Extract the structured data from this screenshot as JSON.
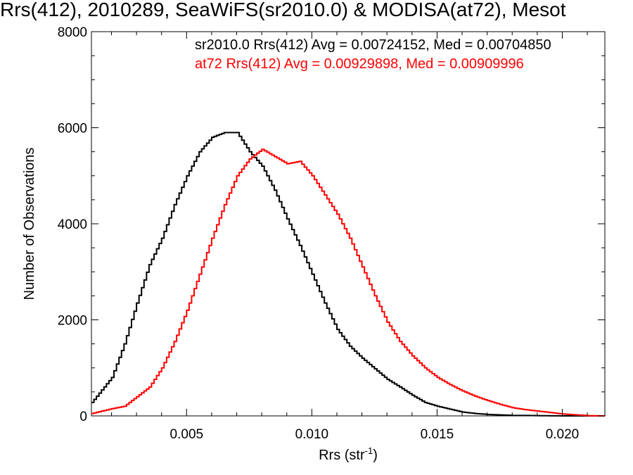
{
  "chart_data": {
    "type": "line",
    "step": true,
    "title": "Rrs(412), 2010289, SeaWiFS(sr2010.0) & MODISA(at72), Mesot",
    "xlabel_base": "Rrs (str",
    "xlabel_sup": "-1",
    "xlabel_end": ")",
    "ylabel": "Number of Observations",
    "xlim": [
      0.0012,
      0.0217
    ],
    "ylim": [
      0,
      8000
    ],
    "x_ticks": [
      0.005,
      0.01,
      0.015,
      0.02
    ],
    "x_tick_labels": [
      "0.005",
      "0.010",
      "0.015",
      "0.020"
    ],
    "y_ticks": [
      0,
      2000,
      4000,
      6000,
      8000
    ],
    "y_tick_labels": [
      "0",
      "2000",
      "4000",
      "6000",
      "8000"
    ],
    "grid": false,
    "legend_position": "top-right",
    "series": [
      {
        "name": "sr2010.0 Rrs(412) Avg = 0.00724152, Med = 0.00704850",
        "color": "#000000",
        "x": [
          0.0012,
          0.002,
          0.0025,
          0.003,
          0.0035,
          0.004,
          0.0045,
          0.005,
          0.0055,
          0.006,
          0.0065,
          0.007,
          0.0075,
          0.008,
          0.0085,
          0.009,
          0.0095,
          0.01,
          0.0105,
          0.011,
          0.0115,
          0.012,
          0.0125,
          0.013,
          0.0135,
          0.014,
          0.0145,
          0.015,
          0.0155,
          0.016,
          0.0165,
          0.017,
          0.0175,
          0.018,
          0.0185,
          0.019,
          0.02,
          0.021,
          0.0217
        ],
        "values": [
          280,
          800,
          1500,
          2350,
          3150,
          3700,
          4400,
          5000,
          5500,
          5800,
          5900,
          5900,
          5500,
          5200,
          4700,
          4100,
          3550,
          2950,
          2350,
          1800,
          1450,
          1200,
          980,
          760,
          600,
          430,
          280,
          200,
          140,
          80,
          50,
          30,
          20,
          10,
          10,
          5,
          0,
          0,
          0
        ]
      },
      {
        "name": "at72 Rrs(412) Avg = 0.00929898, Med = 0.00909996",
        "color": "#ff0000",
        "x": [
          0.0012,
          0.002,
          0.0025,
          0.003,
          0.0035,
          0.004,
          0.0045,
          0.005,
          0.0055,
          0.006,
          0.0065,
          0.007,
          0.0075,
          0.008,
          0.0085,
          0.009,
          0.0095,
          0.01,
          0.0105,
          0.011,
          0.0115,
          0.012,
          0.0125,
          0.013,
          0.0135,
          0.014,
          0.0145,
          0.015,
          0.0155,
          0.016,
          0.0165,
          0.017,
          0.0175,
          0.018,
          0.0185,
          0.019,
          0.02,
          0.021,
          0.0217
        ],
        "values": [
          50,
          150,
          200,
          400,
          600,
          1000,
          1550,
          2200,
          2950,
          3700,
          4400,
          5000,
          5350,
          5550,
          5400,
          5250,
          5300,
          5000,
          4600,
          4200,
          3700,
          3100,
          2500,
          1950,
          1550,
          1250,
          1000,
          800,
          650,
          520,
          410,
          320,
          240,
          170,
          130,
          100,
          40,
          5,
          0
        ]
      }
    ]
  }
}
